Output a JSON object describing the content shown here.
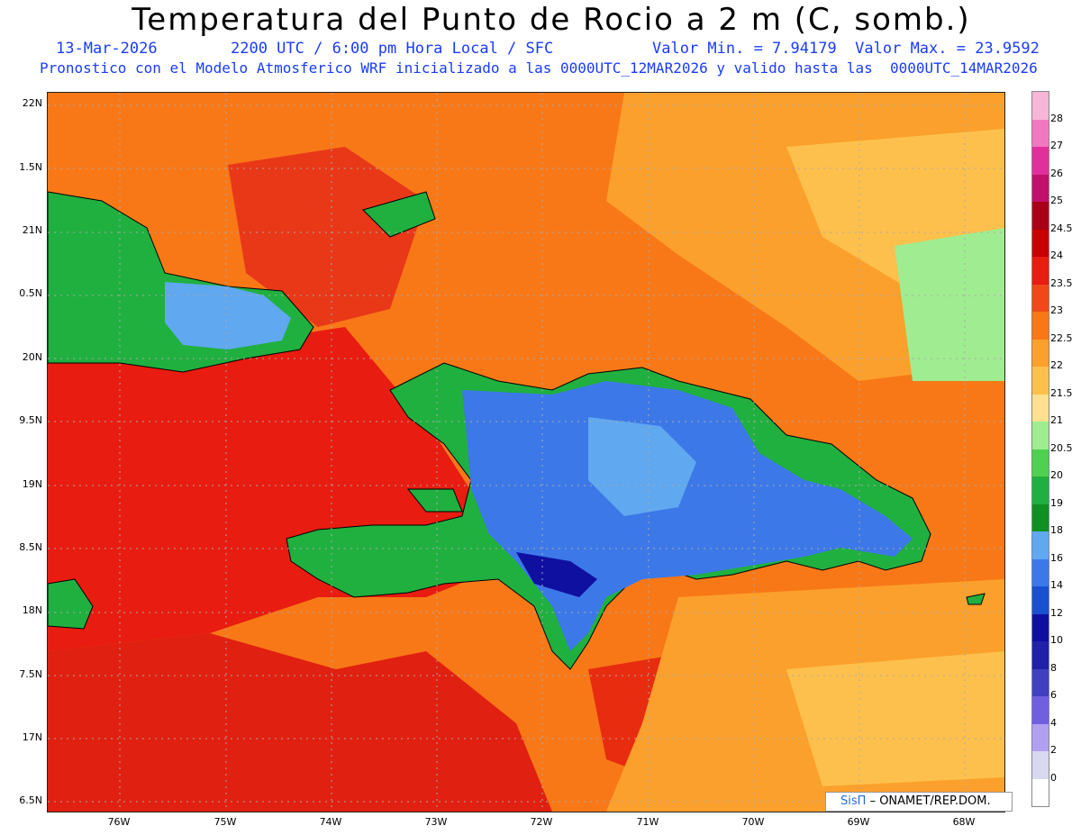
{
  "title": "Temperatura del Punto de Rocio a 2 m (C, somb.)",
  "subtitle": {
    "date": "13-Mar-2026",
    "time": "2200 UTC / 6:00 pm Hora Local / SFC",
    "minmax": "Valor Min. = 7.94179  Valor Max. = 23.9592"
  },
  "description": "Pronostico con el Modelo Atmosferico WRF inicializado a las 0000UTC_12MAR2026 y valido hasta las  0000UTC_14MAR2026",
  "lat_labels": [
    "22N",
    "1.5N",
    "21N",
    "0.5N",
    "20N",
    "9.5N",
    "19N",
    "8.5N",
    "18N",
    "7.5N",
    "17N",
    "6.5N"
  ],
  "lon_labels": [
    "76W",
    "75W",
    "74W",
    "73W",
    "72W",
    "71W",
    "70W",
    "69W",
    "68W"
  ],
  "colorbar": {
    "levels": [
      "28",
      "27",
      "26",
      "25",
      "24.5",
      "24",
      "23.5",
      "23",
      "22.5",
      "22",
      "21.5",
      "21",
      "20.5",
      "20",
      "19",
      "18",
      "16",
      "14",
      "12",
      "10",
      "8",
      "6",
      "4",
      "2",
      "0"
    ],
    "colors": [
      "#f5b6d8",
      "#f078c0",
      "#e0309c",
      "#c0106c",
      "#a80018",
      "#c80000",
      "#e81c10",
      "#f04818",
      "#f87818",
      "#fba02c",
      "#fdc04c",
      "#fee090",
      "#a0ec90",
      "#50d050",
      "#20b040",
      "#109020",
      "#60a8f0",
      "#3c78e8",
      "#1850d0",
      "#1010a0",
      "#2020a8",
      "#4040c0",
      "#7060e0",
      "#b0a0f0",
      "#d8d8f0",
      "#ffffff"
    ]
  },
  "logo": {
    "sis": "SisΠ",
    "text": "– ONAMET/REP.DOM."
  }
}
